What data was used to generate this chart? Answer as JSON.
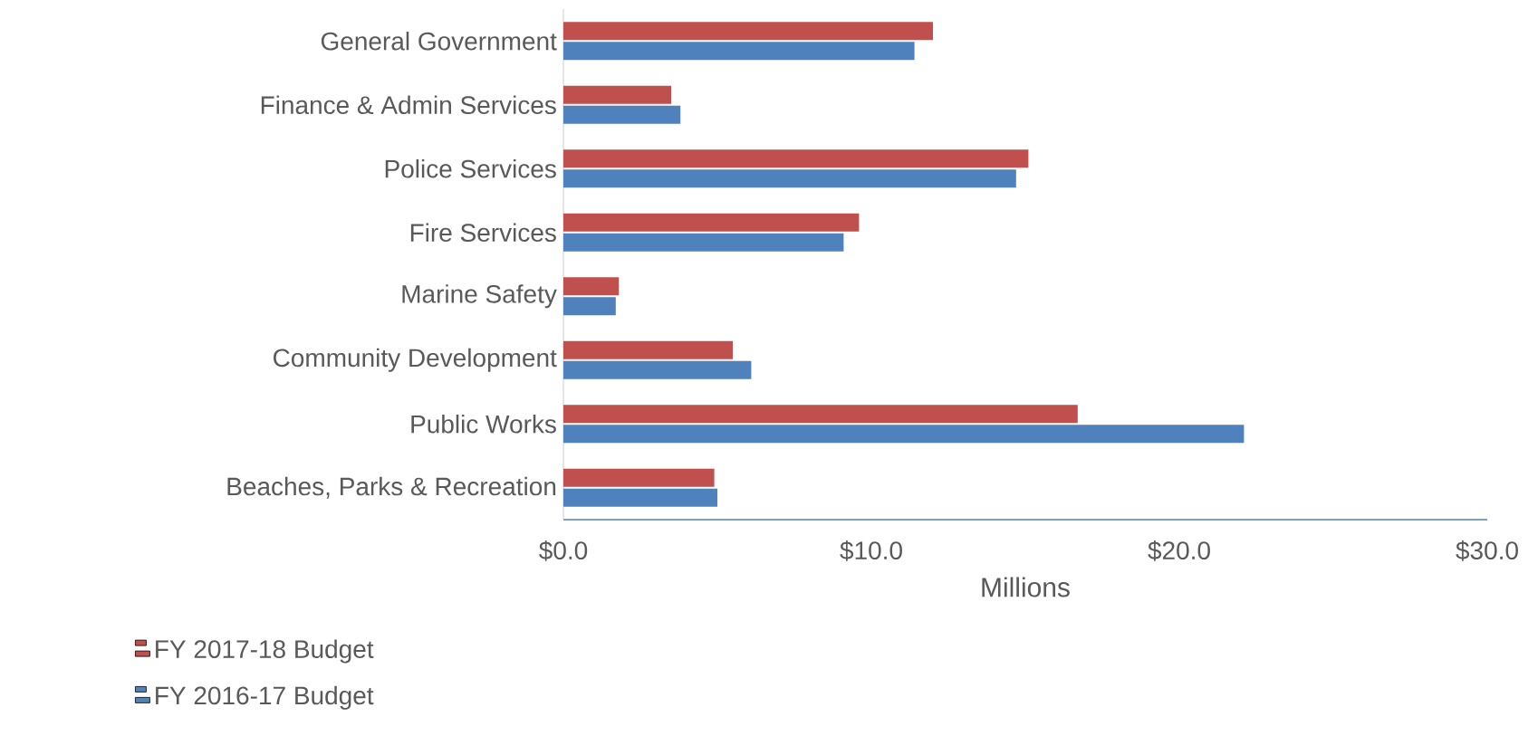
{
  "chart_data": {
    "type": "bar",
    "orientation": "horizontal",
    "xlabel": "Millions",
    "categories": [
      "General Government",
      "Finance & Admin Services",
      "Police Services",
      "Fire Services",
      "Marine Safety",
      "Community Development",
      "Public Works",
      "Beaches, Parks & Recreation"
    ],
    "series": [
      {
        "name": "FY 2017-18 Budget",
        "color": "#c0504d",
        "values": [
          12.0,
          3.5,
          15.1,
          9.6,
          1.8,
          5.5,
          16.7,
          4.9
        ]
      },
      {
        "name": "FY 2016-17 Budget",
        "color": "#4f81bd",
        "values": [
          11.4,
          3.8,
          14.7,
          9.1,
          1.7,
          6.1,
          22.1,
          5.0
        ]
      }
    ],
    "xlim": [
      0,
      30
    ],
    "xticks": [
      {
        "value": 0,
        "label": "$0.0"
      },
      {
        "value": 10,
        "label": "$10.0"
      },
      {
        "value": 20,
        "label": "$20.0"
      },
      {
        "value": 30,
        "label": "$30.0"
      }
    ],
    "legend": "bottom left"
  }
}
